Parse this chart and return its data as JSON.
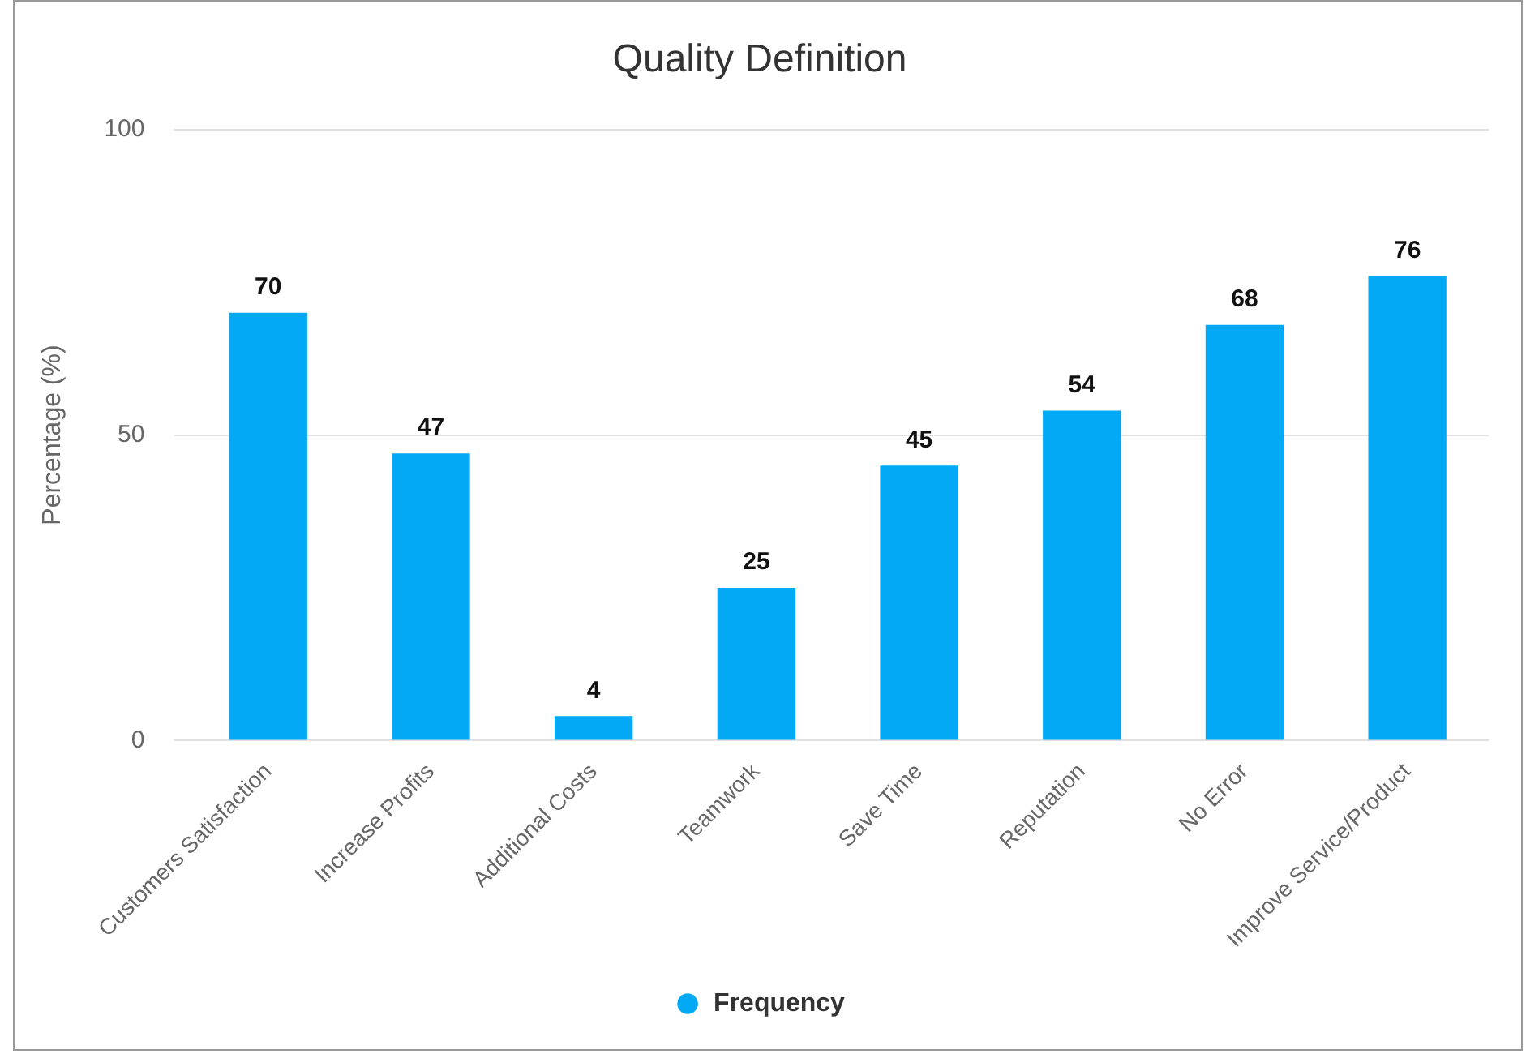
{
  "chart_data": {
    "type": "bar",
    "title": "Quality Definition",
    "ylabel": "Percentage (%)",
    "categories": [
      "Customers Satisfaction",
      "Increase Profits",
      "Additional Costs",
      "Teamwork",
      "Save Time",
      "Reputation",
      "No Error",
      "Improve Service/Product"
    ],
    "series": [
      {
        "name": "Frequency",
        "color": "#03a9f4",
        "values": [
          70,
          47,
          4,
          25,
          45,
          54,
          68,
          76
        ]
      }
    ],
    "ylim": [
      0,
      100
    ],
    "yticks": [
      0,
      50,
      100
    ],
    "grid": "y",
    "legend": "bottom",
    "data_labels": true
  }
}
